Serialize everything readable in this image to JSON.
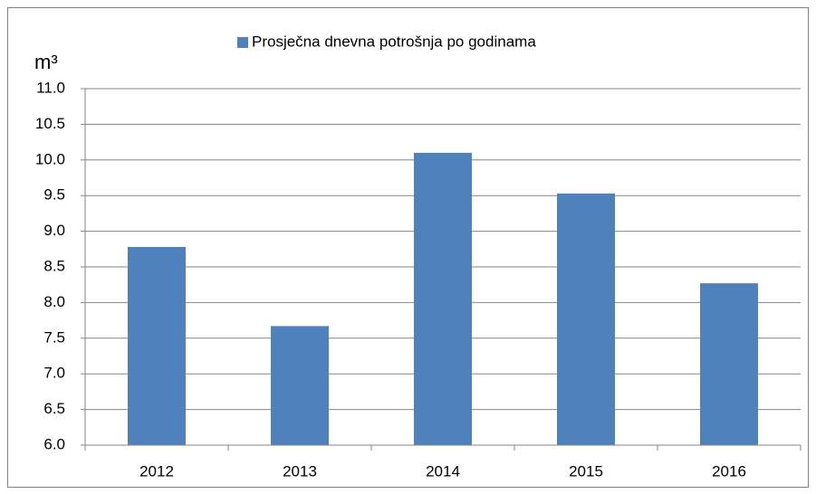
{
  "chart_data": {
    "type": "bar",
    "y_label": "m³",
    "categories": [
      "2012",
      "2013",
      "2014",
      "2015",
      "2016"
    ],
    "series": [
      {
        "name": "Prosječna dnevna potrošnja po godinama",
        "color": "#4f81bd",
        "values": [
          8.78,
          7.67,
          10.1,
          9.53,
          8.27
        ]
      }
    ],
    "ylim": [
      6,
      11
    ],
    "yticks": [
      {
        "value": 6,
        "label": "6.0"
      },
      6.5,
      {
        "value": 7,
        "label": "7.0"
      },
      7.5,
      {
        "value": 8,
        "label": "8.0"
      },
      8.5,
      {
        "value": 9,
        "label": "9.0"
      },
      9.5,
      {
        "value": 10,
        "label": "10.0"
      },
      10.5,
      {
        "value": 11,
        "label": "11.0"
      }
    ],
    "grid": true,
    "legend": "top"
  }
}
